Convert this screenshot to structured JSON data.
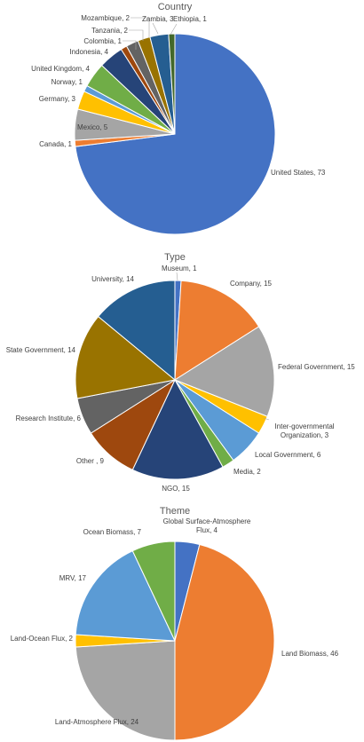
{
  "chart_data": [
    {
      "type": "pie",
      "title": "Country",
      "series": [
        {
          "categories": [
            "United States",
            "Canada",
            "Mexico",
            "Germany",
            "Norway",
            "United Kingdom",
            "Indonesia",
            "Colombia",
            "Tanzania",
            "Mozambique",
            "Zambia",
            "Ethiopia"
          ],
          "values": [
            73,
            1,
            5,
            3,
            1,
            4,
            4,
            1,
            2,
            2,
            3,
            1
          ],
          "colors": [
            "#4472C4",
            "#ED7D31",
            "#A5A5A5",
            "#FFC000",
            "#5B9BD5",
            "#70AD47",
            "#264478",
            "#9E480E",
            "#636363",
            "#997300",
            "#255E91",
            "#43682B"
          ]
        }
      ],
      "labels": [
        "United States, 73",
        "Canada, 1",
        "Mexico, 5",
        "Germany, 3",
        "Norway, 1",
        "United Kingdom, 4",
        "Indonesia, 4",
        "Colombia, 1",
        "Tanzania, 2",
        "Mozambique, 2",
        "Zambia, 3",
        "Ethiopia, 1"
      ]
    },
    {
      "type": "pie",
      "title": "Type",
      "series": [
        {
          "categories": [
            "Museum",
            "Company",
            "Federal Government",
            "Inter-governmental Organization",
            "Local Government",
            "Media",
            "NGO",
            "Other",
            "Research Institute",
            "State Government",
            "University"
          ],
          "values": [
            1,
            15,
            15,
            3,
            6,
            2,
            15,
            9,
            6,
            14,
            14
          ],
          "colors": [
            "#4472C4",
            "#ED7D31",
            "#A5A5A5",
            "#FFC000",
            "#5B9BD5",
            "#70AD47",
            "#264478",
            "#9E480E",
            "#636363",
            "#997300",
            "#255E91"
          ]
        }
      ],
      "labels": [
        "Museum, 1",
        "Company, 15",
        "Federal Government, 15",
        "Inter-governmental\nOrganization, 3",
        "Local Government, 6",
        "Media, 2",
        "NGO, 15",
        "Other , 9",
        "Research Institute, 6",
        "State Government, 14",
        "University, 14"
      ]
    },
    {
      "type": "pie",
      "title": "Theme",
      "series": [
        {
          "categories": [
            "Global Surface-Atmosphere Flux",
            "Land Biomass",
            "Land-Atmosphere Flux",
            "Land-Ocean Flux",
            "MRV",
            "Ocean Biomass"
          ],
          "values": [
            4,
            46,
            24,
            2,
            17,
            7
          ],
          "colors": [
            "#4472C4",
            "#ED7D31",
            "#A5A5A5",
            "#FFC000",
            "#5B9BD5",
            "#70AD47"
          ]
        }
      ],
      "labels": [
        "Global Surface-Atmosphere\nFlux, 4",
        "Land Biomass, 46",
        "Land-Atmosphere Flux, 24",
        "Land-Ocean Flux, 2",
        "MRV, 17",
        "Ocean Biomass, 7"
      ]
    }
  ]
}
